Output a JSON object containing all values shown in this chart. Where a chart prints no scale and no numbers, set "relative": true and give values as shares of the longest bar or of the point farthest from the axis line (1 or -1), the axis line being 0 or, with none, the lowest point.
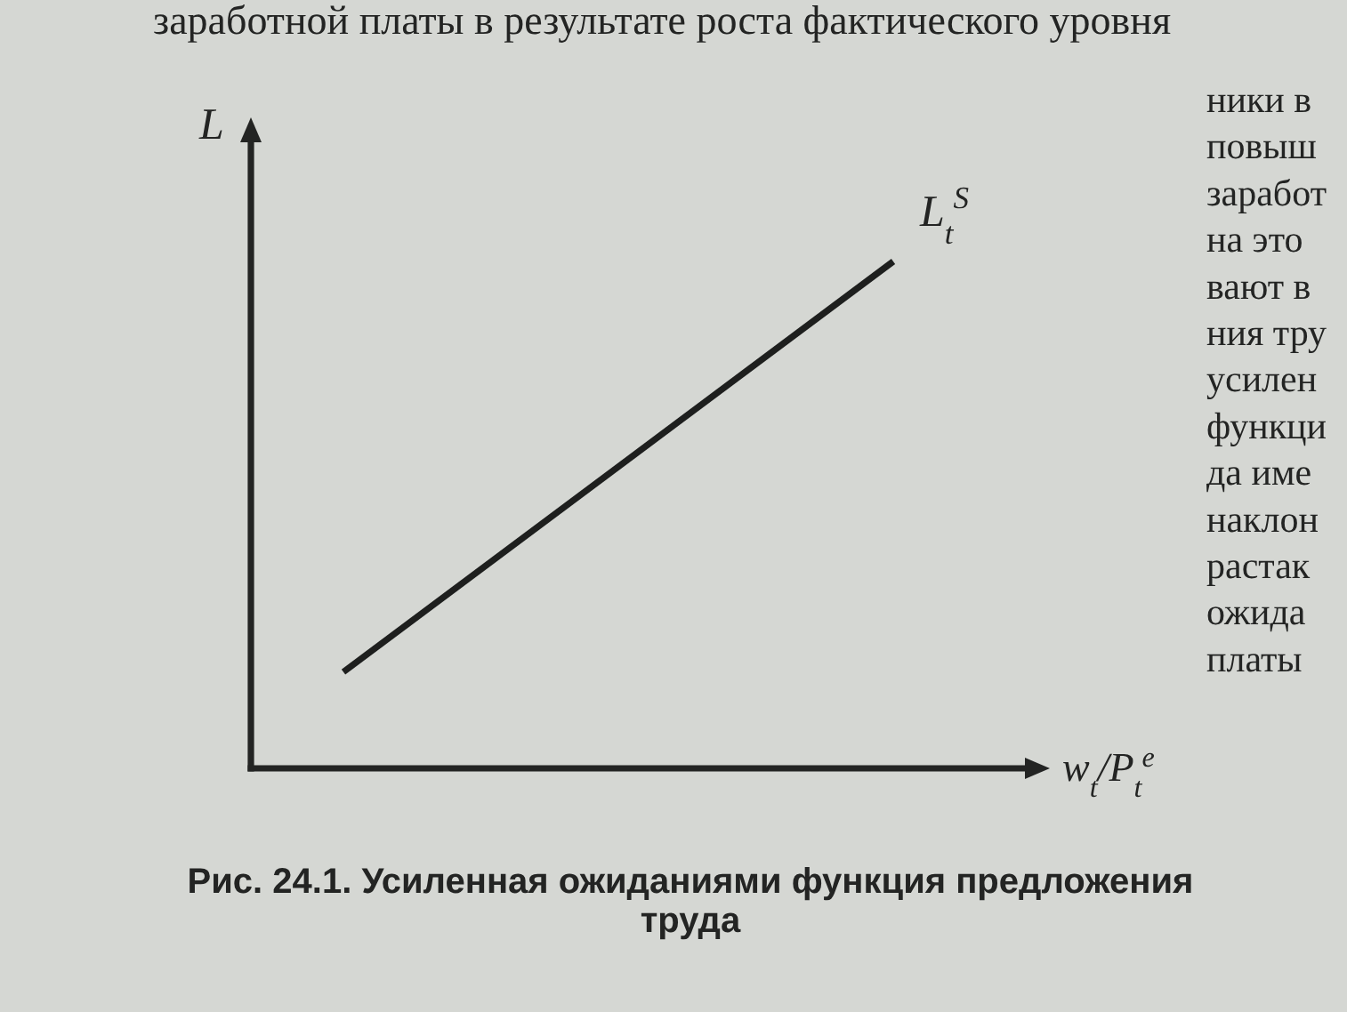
{
  "chart_data": {
    "type": "line",
    "relative": true,
    "categories": [
      null,
      null
    ],
    "series": [
      {
        "name": "L$_{t}$$^{S}$",
        "color": "#1e1f1e",
        "values": [
          0.19,
          1
        ]
      }
    ],
    "xlabel": "w$_{t}$/P$_{t}$$^{e}$",
    "ylabel": "L",
    "annotations": [
      "Рис. 24.1. Усиленная ожиданиями функция предложения труда",
      "заработной платы в результате роста фактического уровня",
      "ники в",
      "повыш",
      "заработ",
      "на это",
      "вают в",
      "ния тру",
      "усилен",
      "функци",
      "да име",
      "наклон",
      "растак",
      "ожида",
      "платы"
    ]
  }
}
